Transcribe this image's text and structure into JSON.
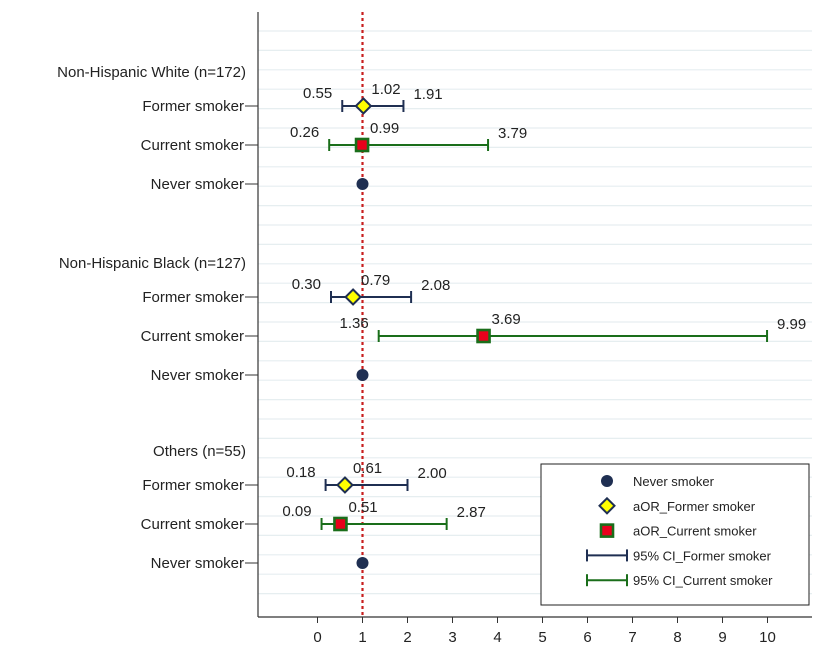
{
  "chart_data": {
    "type": "forest",
    "xlabel": "",
    "ylabel": "",
    "xticks": [
      0,
      1,
      2,
      3,
      4,
      5,
      6,
      7,
      8,
      9,
      10
    ],
    "xlim": [
      -1.3,
      10.5
    ],
    "reference_line": 1,
    "grid": true,
    "legend_position": "bottom-right",
    "colors": {
      "never": "#1f2f52",
      "former_marker_fill": "#ffff00",
      "former_marker_edge": "#1f2f52",
      "former_ci": "#1f2f52",
      "current_marker_fill": "#e8001c",
      "current_marker_edge": "#1a6e1a",
      "current_ci": "#1a6e1a",
      "reference_line": "#c81e1e",
      "grid": "#e6eef0"
    },
    "groups": [
      {
        "label": "Non-Hispanic White (n=172)",
        "rows": [
          {
            "label": "Former smoker",
            "kind": "former",
            "aor": 1.02,
            "lo": 0.55,
            "hi": 1.91,
            "aor_text": "1.02",
            "lo_text": "0.55",
            "hi_text": "1.91"
          },
          {
            "label": "Current smoker",
            "kind": "current",
            "aor": 0.99,
            "lo": 0.26,
            "hi": 3.79,
            "aor_text": "0.99",
            "lo_text": "0.26",
            "hi_text": "3.79"
          },
          {
            "label": "Never smoker",
            "kind": "never",
            "aor": 1.0
          }
        ]
      },
      {
        "label": "Non-Hispanic Black (n=127)",
        "rows": [
          {
            "label": "Former smoker",
            "kind": "former",
            "aor": 0.79,
            "lo": 0.3,
            "hi": 2.08,
            "aor_text": "0.79",
            "lo_text": "0.30",
            "hi_text": "2.08"
          },
          {
            "label": "Current smoker",
            "kind": "current",
            "aor": 3.69,
            "lo": 1.36,
            "hi": 9.99,
            "aor_text": "3.69",
            "lo_text": "1.36",
            "hi_text": "9.99"
          },
          {
            "label": "Never smoker",
            "kind": "never",
            "aor": 1.0
          }
        ]
      },
      {
        "label": "Others (n=55)",
        "rows": [
          {
            "label": "Former smoker",
            "kind": "former",
            "aor": 0.61,
            "lo": 0.18,
            "hi": 2.0,
            "aor_text": "0.61",
            "lo_text": "0.18",
            "hi_text": "2.00"
          },
          {
            "label": "Current smoker",
            "kind": "current",
            "aor": 0.51,
            "lo": 0.09,
            "hi": 2.87,
            "aor_text": "0.51",
            "lo_text": "0.09",
            "hi_text": "2.87"
          },
          {
            "label": "Never smoker",
            "kind": "never",
            "aor": 1.0
          }
        ]
      }
    ],
    "legend": [
      {
        "label": "Never smoker",
        "symbol": "never"
      },
      {
        "label": "aOR_Former smoker",
        "symbol": "former"
      },
      {
        "label": "aOR_Current smoker",
        "symbol": "current"
      },
      {
        "label": "95% CI_Former smoker",
        "symbol": "former_ci"
      },
      {
        "label": "95% CI_Current smoker",
        "symbol": "current_ci"
      }
    ]
  }
}
